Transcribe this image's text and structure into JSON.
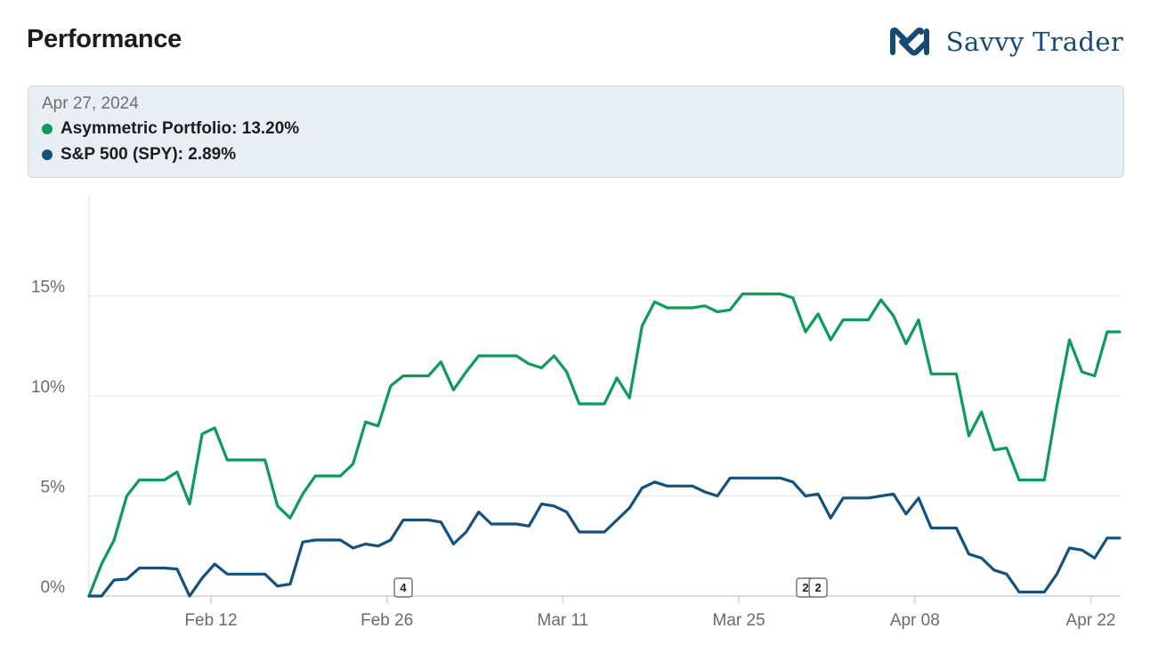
{
  "header": {
    "title": "Performance",
    "brand": "Savvy Trader"
  },
  "tooltip": {
    "date": "Apr 27, 2024",
    "rows": [
      {
        "label": "Asymmetric Portfolio: 13.20%",
        "color": "#0d9b5c"
      },
      {
        "label": "S&P 500 (SPY): 2.89%",
        "color": "#13517e"
      }
    ]
  },
  "chart_data": {
    "type": "line",
    "x_tick_labels": [
      "Feb 12",
      "Feb 26",
      "Mar 11",
      "Mar 25",
      "Apr 08",
      "Apr 22"
    ],
    "y_tick_labels": [
      "0%",
      "5%",
      "10%",
      "15%"
    ],
    "y_ticks": [
      0,
      5,
      10,
      15
    ],
    "ylim": [
      0,
      20
    ],
    "grid": true,
    "event_flags": [
      {
        "label": "4",
        "x_index": 25
      },
      {
        "label": "2",
        "x_index": 57
      },
      {
        "label": "2",
        "x_index": 58
      }
    ],
    "series": [
      {
        "name": "Asymmetric Portfolio",
        "color": "#0d9b5c",
        "values": [
          0,
          1.6,
          2.8,
          5.0,
          5.8,
          5.8,
          5.8,
          6.2,
          4.6,
          8.1,
          8.4,
          6.8,
          6.8,
          6.8,
          6.8,
          4.5,
          3.9,
          5.1,
          6.0,
          6.0,
          6.0,
          6.6,
          8.7,
          8.5,
          10.5,
          11.0,
          11.0,
          11.0,
          11.7,
          10.3,
          11.2,
          12.0,
          12.0,
          12.0,
          12.0,
          11.6,
          11.4,
          12.0,
          11.2,
          9.6,
          9.6,
          9.6,
          10.9,
          9.9,
          13.5,
          14.7,
          14.4,
          14.4,
          14.4,
          14.5,
          14.2,
          14.3,
          15.1,
          15.1,
          15.1,
          15.1,
          14.9,
          13.2,
          14.1,
          12.8,
          13.8,
          13.8,
          13.8,
          14.8,
          14.0,
          12.6,
          13.8,
          11.1,
          11.1,
          11.1,
          8.0,
          9.2,
          7.3,
          7.4,
          5.8,
          5.8,
          5.8,
          9.5,
          12.8,
          11.2,
          11.0,
          13.2,
          13.2
        ]
      },
      {
        "name": "S&P 500 (SPY)",
        "color": "#13517e",
        "values": [
          0,
          0,
          0.8,
          0.85,
          1.4,
          1.4,
          1.4,
          1.35,
          0,
          0.9,
          1.6,
          1.1,
          1.1,
          1.1,
          1.1,
          0.5,
          0.6,
          2.7,
          2.8,
          2.8,
          2.8,
          2.4,
          2.6,
          2.5,
          2.8,
          3.8,
          3.8,
          3.8,
          3.7,
          2.6,
          3.2,
          4.2,
          3.6,
          3.6,
          3.6,
          3.5,
          4.6,
          4.5,
          4.2,
          3.2,
          3.2,
          3.2,
          3.8,
          4.4,
          5.4,
          5.7,
          5.5,
          5.5,
          5.5,
          5.2,
          5.0,
          5.9,
          5.9,
          5.9,
          5.9,
          5.9,
          5.7,
          5.0,
          5.1,
          3.9,
          4.9,
          4.9,
          4.9,
          5.0,
          5.1,
          4.1,
          4.9,
          3.4,
          3.4,
          3.4,
          2.1,
          1.9,
          1.3,
          1.1,
          0.2,
          0.2,
          0.2,
          1.1,
          2.4,
          2.3,
          1.9,
          2.9,
          2.9
        ]
      }
    ]
  }
}
